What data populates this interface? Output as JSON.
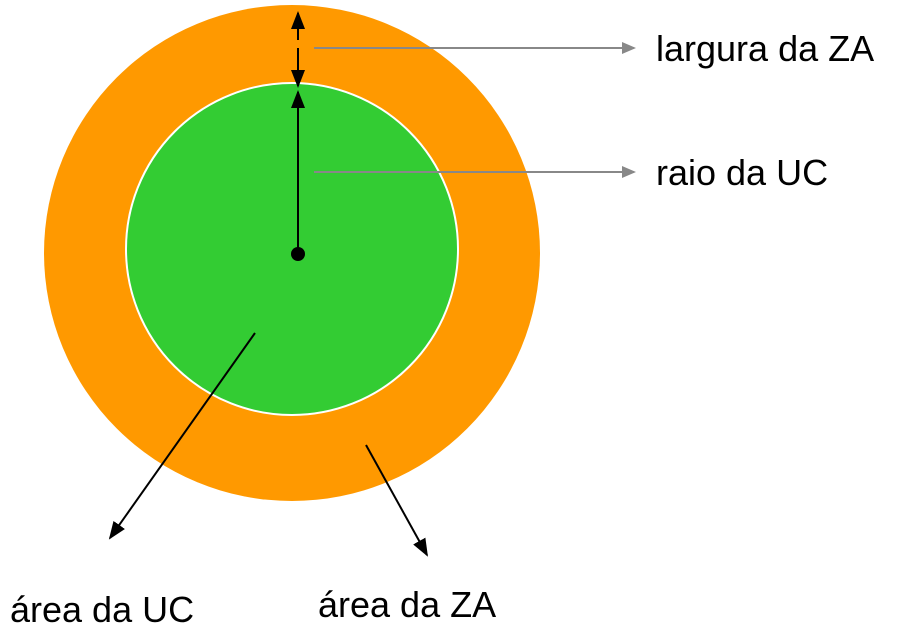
{
  "labels": {
    "zone_width": "largura da ZA",
    "uc_radius": "raio da UC",
    "uc_area": "área da UC",
    "za_area": "área da ZA"
  }
}
